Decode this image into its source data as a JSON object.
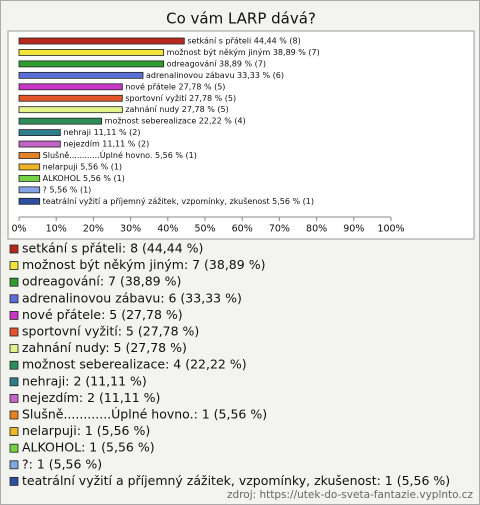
{
  "chart_data": {
    "type": "bar",
    "orientation": "horizontal",
    "title": "Co vám LARP dává?",
    "values": [
      44.44,
      38.89,
      38.89,
      33.33,
      27.78,
      27.78,
      27.78,
      22.22,
      11.11,
      11.11,
      5.56,
      5.56,
      5.56,
      5.56,
      5.56
    ],
    "value_labels": [
      "setkání s přáteli 44,44 % (8)",
      "možnost být někým jiným 38,89 % (7)",
      "odreagování 38,89 % (7)",
      "adrenalinovou zábavu 33,33 % (6)",
      "nové přátele 27,78 % (5)",
      "sportovní vyžití 27,78 % (5)",
      "zahnání nudy 27,78 % (5)",
      "možnost seberealizace 22,22 % (4)",
      "nehraji 11,11 % (2)",
      "nejezdím 11,11 % (2)",
      "Slušně............Úplné hovno. 5,56 % (1)",
      "nelarpuji 5,56 % (1)",
      "ALKOHOL 5,56 % (1)",
      "? 5,56 % (1)",
      "teatrální vyžití a příjemný zážitek, vzpomínky, zkušenost 5,56 % (1)"
    ],
    "legend_labels": [
      "setkání s přáteli: 8 (44,44 %)",
      "možnost být někým jiným: 7 (38,89 %)",
      "odreagování: 7 (38,89 %)",
      "adrenalinovou zábavu: 6 (33,33 %)",
      "nové přátele: 5 (27,78 %)",
      "sportovní vyžití: 5 (27,78 %)",
      "zahnání nudy: 5 (27,78 %)",
      "možnost seberealizace: 4 (22,22 %)",
      "nehraji: 2 (11,11 %)",
      "nejezdím: 2 (11,11 %)",
      "Slušně............Úplné hovno.: 1 (5,56 %)",
      "nelarpuji: 1 (5,56 %)",
      "ALKOHOL: 1 (5,56 %)",
      "?: 1 (5,56 %)",
      "teatrální vyžití a příjemný zážitek, vzpomínky, zkušenost: 1 (5,56 %)"
    ],
    "colors": [
      "#b8281e",
      "#f2e43a",
      "#2e9e2e",
      "#5a6fd8",
      "#c836c8",
      "#e2542a",
      "#e4f28a",
      "#2e8e5a",
      "#2e7e8e",
      "#c464c4",
      "#e68224",
      "#f0b428",
      "#74d244",
      "#84a4e4",
      "#2e4ea2"
    ],
    "xlim": [
      0,
      100
    ],
    "xticks": [
      {
        "value": 0,
        "label": "0%"
      },
      {
        "value": 10,
        "label": "10%"
      },
      {
        "value": 20,
        "label": "20%"
      },
      {
        "value": 30,
        "label": "30%"
      },
      {
        "value": 40,
        "label": "40%"
      },
      {
        "value": 50,
        "label": "50%"
      },
      {
        "value": 60,
        "label": "60%"
      },
      {
        "value": 70,
        "label": "70%"
      },
      {
        "value": 80,
        "label": "80%"
      },
      {
        "value": 90,
        "label": "90%"
      },
      {
        "value": 100,
        "label": "100%"
      }
    ],
    "source": "zdroj: https://utek-do-sveta-fantazie.vyplnto.cz"
  }
}
